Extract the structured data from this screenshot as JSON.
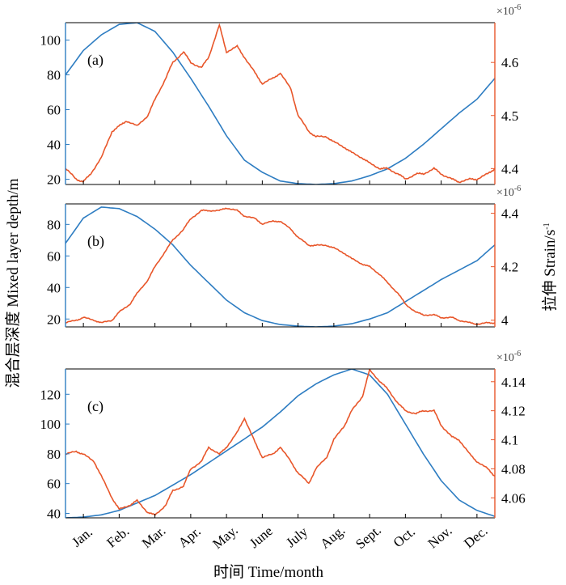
{
  "colors": {
    "blue": "#2E7DC2",
    "orange": "#E8562A",
    "frame": "#000000"
  },
  "chart_data": {
    "type": "line",
    "x_label": "时间 Time/month",
    "left_ylabel": "混合层深度 Mixed layer depth/m",
    "right_ylabel": "拉伸 Strain/s",
    "right_ylabel_exp": "-1",
    "sci_multiplier": "×10",
    "sci_exponent": "-6",
    "months": [
      "Jan.",
      "Feb.",
      "Mar.",
      "Apr.",
      "May.",
      "June",
      "July",
      "Aug.",
      "Sept.",
      "Oct.",
      "Nov.",
      "Dec."
    ],
    "xlim": [
      0.5,
      12.5
    ],
    "panels": [
      {
        "label": "(a)",
        "left_ylim": [
          17,
          110
        ],
        "left_ticks": [
          20,
          40,
          60,
          80,
          100
        ],
        "right_ylim": [
          4.37,
          4.675
        ],
        "right_ticks": [
          4.4,
          4.5,
          4.6
        ],
        "right_tick_labels": [
          "4.4",
          "4.5",
          "4.6"
        ],
        "mixed_layer_depth": {
          "x": [
            0.5,
            1.0,
            1.5,
            2.0,
            2.5,
            3.0,
            3.5,
            4.0,
            4.5,
            5.0,
            5.5,
            6.0,
            6.5,
            7.0,
            7.5,
            8.0,
            8.5,
            9.0,
            9.5,
            10.0,
            10.5,
            11.0,
            11.5,
            12.0,
            12.5
          ],
          "y": [
            80,
            94,
            103,
            109,
            110,
            105,
            93,
            78,
            62,
            45,
            31,
            24,
            19,
            17.5,
            17,
            17.5,
            19,
            22,
            26,
            32,
            40,
            49,
            58,
            66,
            78
          ]
        },
        "strain": {
          "x": [
            0.5,
            0.8,
            1.0,
            1.2,
            1.5,
            1.8,
            2.0,
            2.2,
            2.5,
            2.8,
            3.0,
            3.3,
            3.5,
            3.8,
            4.0,
            4.3,
            4.5,
            4.8,
            5.0,
            5.3,
            5.5,
            5.8,
            6.0,
            6.3,
            6.5,
            6.8,
            7.0,
            7.3,
            7.5,
            7.8,
            8.0,
            8.3,
            8.5,
            8.8,
            9.0,
            9.3,
            9.5,
            9.8,
            10.0,
            10.3,
            10.5,
            10.8,
            11.0,
            11.3,
            11.5,
            11.8,
            12.0,
            12.3,
            12.5
          ],
          "y": [
            4.4,
            4.38,
            4.375,
            4.39,
            4.42,
            4.47,
            4.48,
            4.49,
            4.48,
            4.5,
            4.53,
            4.57,
            4.6,
            4.62,
            4.6,
            4.59,
            4.61,
            4.67,
            4.62,
            4.63,
            4.61,
            4.58,
            4.56,
            4.57,
            4.58,
            4.55,
            4.5,
            4.47,
            4.46,
            4.46,
            4.45,
            4.44,
            4.43,
            4.42,
            4.41,
            4.4,
            4.4,
            4.39,
            4.38,
            4.39,
            4.39,
            4.4,
            4.39,
            4.38,
            4.375,
            4.38,
            4.38,
            4.39,
            4.4
          ]
        }
      },
      {
        "label": "(b)",
        "left_ylim": [
          15,
          93
        ],
        "left_ticks": [
          20,
          40,
          60,
          80
        ],
        "right_ylim": [
          3.975,
          4.435
        ],
        "right_ticks": [
          4.0,
          4.2,
          4.4
        ],
        "right_tick_labels": [
          "4",
          "4.2",
          "4.4"
        ],
        "mixed_layer_depth": {
          "x": [
            0.5,
            1.0,
            1.5,
            2.0,
            2.5,
            3.0,
            3.5,
            4.0,
            4.5,
            5.0,
            5.5,
            6.0,
            6.5,
            7.0,
            7.5,
            8.0,
            8.5,
            9.0,
            9.5,
            10.0,
            10.5,
            11.0,
            11.5,
            12.0,
            12.5
          ],
          "y": [
            68,
            84,
            91,
            90,
            85,
            77,
            67,
            54,
            43,
            32,
            24,
            19,
            16.5,
            15.5,
            15,
            15.5,
            17,
            20,
            24,
            31,
            38,
            45,
            51,
            57,
            67
          ]
        },
        "strain": {
          "x": [
            0.5,
            0.8,
            1.0,
            1.3,
            1.5,
            1.8,
            2.0,
            2.3,
            2.5,
            2.8,
            3.0,
            3.3,
            3.5,
            3.8,
            4.0,
            4.3,
            4.5,
            4.8,
            5.0,
            5.3,
            5.5,
            5.8,
            6.0,
            6.3,
            6.5,
            6.8,
            7.0,
            7.3,
            7.5,
            7.8,
            8.0,
            8.3,
            8.5,
            8.8,
            9.0,
            9.3,
            9.5,
            9.8,
            10.0,
            10.3,
            10.5,
            10.8,
            11.0,
            11.3,
            11.5,
            11.8,
            12.0,
            12.3,
            12.5
          ],
          "y": [
            3.99,
            4.0,
            4.01,
            4.0,
            3.99,
            4.0,
            4.03,
            4.06,
            4.1,
            4.15,
            4.2,
            4.26,
            4.3,
            4.34,
            4.38,
            4.41,
            4.41,
            4.41,
            4.42,
            4.41,
            4.39,
            4.38,
            4.36,
            4.37,
            4.37,
            4.34,
            4.31,
            4.28,
            4.28,
            4.28,
            4.27,
            4.25,
            4.23,
            4.21,
            4.2,
            4.17,
            4.14,
            4.1,
            4.06,
            4.03,
            4.02,
            4.02,
            4.01,
            4.01,
            4.0,
            3.99,
            3.985,
            3.99,
            3.99
          ]
        }
      },
      {
        "label": "(c)",
        "left_ylim": [
          37,
          137
        ],
        "left_ticks": [
          40,
          60,
          80,
          100,
          120
        ],
        "right_ylim": [
          4.0462,
          4.1488
        ],
        "right_ticks": [
          4.06,
          4.08,
          4.1,
          4.12,
          4.14
        ],
        "right_tick_labels": [
          "4.06",
          "4.08",
          "4.1",
          "4.12",
          "4.14"
        ],
        "mixed_layer_depth": {
          "x": [
            0.5,
            1.0,
            1.5,
            2.0,
            2.5,
            3.0,
            3.5,
            4.0,
            4.5,
            5.0,
            5.5,
            6.0,
            6.5,
            7.0,
            7.5,
            8.0,
            8.5,
            9.0,
            9.5,
            10.0,
            10.5,
            11.0,
            11.5,
            12.0,
            12.5
          ],
          "y": [
            37,
            37.5,
            39,
            42,
            47,
            52,
            59,
            66,
            74,
            82,
            90,
            98,
            108,
            119,
            127,
            133,
            137,
            133,
            120,
            100,
            80,
            62,
            49,
            42,
            38
          ]
        },
        "strain": {
          "x": [
            0.5,
            0.8,
            1.0,
            1.3,
            1.5,
            1.8,
            2.0,
            2.3,
            2.5,
            2.8,
            3.0,
            3.3,
            3.5,
            3.8,
            4.0,
            4.3,
            4.5,
            4.8,
            5.0,
            5.3,
            5.5,
            5.8,
            6.0,
            6.3,
            6.5,
            6.8,
            7.0,
            7.3,
            7.5,
            7.8,
            8.0,
            8.3,
            8.5,
            8.8,
            9.0,
            9.3,
            9.5,
            9.8,
            10.0,
            10.3,
            10.5,
            10.8,
            11.0,
            11.3,
            11.5,
            11.8,
            12.0,
            12.3,
            12.5
          ],
          "y": [
            4.09,
            4.092,
            4.09,
            4.085,
            4.075,
            4.06,
            4.052,
            4.055,
            4.058,
            4.05,
            4.048,
            4.055,
            4.065,
            4.068,
            4.08,
            4.085,
            4.095,
            4.09,
            4.095,
            4.105,
            4.115,
            4.098,
            4.088,
            4.09,
            4.095,
            4.085,
            4.077,
            4.07,
            4.08,
            4.088,
            4.1,
            4.11,
            4.12,
            4.13,
            4.148,
            4.14,
            4.135,
            4.125,
            4.12,
            4.118,
            4.12,
            4.12,
            4.11,
            4.102,
            4.1,
            4.09,
            4.085,
            4.08,
            4.075
          ]
        }
      }
    ]
  }
}
